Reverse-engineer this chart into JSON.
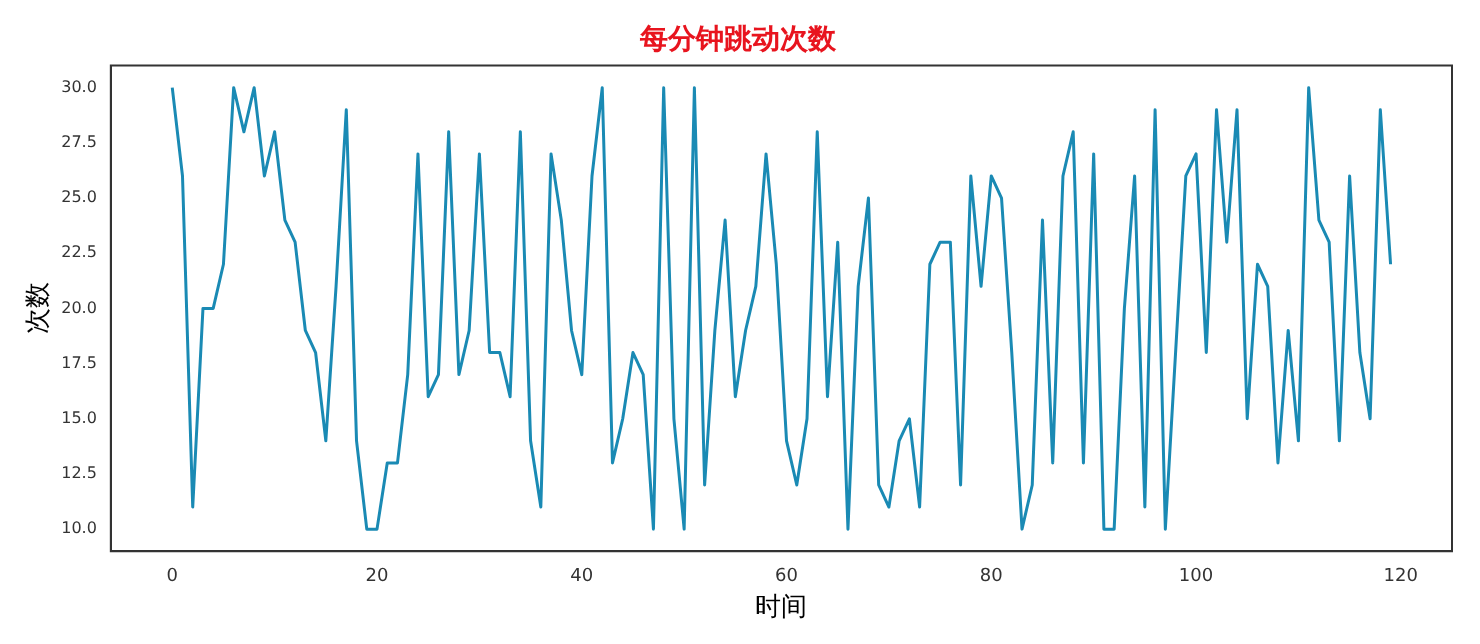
{
  "chart_data": {
    "type": "line",
    "title": "每分钟跳动次数",
    "xlabel": "时间",
    "ylabel": "次数",
    "x": [
      0,
      1,
      2,
      3,
      4,
      5,
      6,
      7,
      8,
      9,
      10,
      11,
      12,
      13,
      14,
      15,
      16,
      17,
      18,
      19,
      20,
      21,
      22,
      23,
      24,
      25,
      26,
      27,
      28,
      29,
      30,
      31,
      32,
      33,
      34,
      35,
      36,
      37,
      38,
      39,
      40,
      41,
      42,
      43,
      44,
      45,
      46,
      47,
      48,
      49,
      50,
      51,
      52,
      53,
      54,
      55,
      56,
      57,
      58,
      59,
      60,
      61,
      62,
      63,
      64,
      65,
      66,
      67,
      68,
      69,
      70,
      71,
      72,
      73,
      74,
      75,
      76,
      77,
      78,
      79,
      80,
      81,
      82,
      83,
      84,
      85,
      86,
      87,
      88,
      89,
      90,
      91,
      92,
      93,
      94,
      95,
      96,
      97,
      98,
      99,
      100,
      101,
      102,
      103,
      104,
      105,
      106,
      107,
      108,
      109,
      110,
      111,
      112,
      113,
      114,
      115,
      116,
      117,
      118,
      119
    ],
    "series": [
      {
        "color": "#1a8ab4",
        "values": [
          30,
          26,
          11,
          20,
          20,
          22,
          30,
          28,
          30,
          26,
          28,
          24,
          23,
          19,
          18,
          14,
          21,
          29,
          14,
          10,
          10,
          13,
          13,
          17,
          27,
          16,
          17,
          28,
          17,
          19,
          27,
          18,
          18,
          16,
          28,
          14,
          11,
          27,
          24,
          19,
          17,
          26,
          30,
          13,
          15,
          18,
          17,
          10,
          30,
          15,
          10,
          30,
          12,
          19,
          24,
          16,
          19,
          21,
          27,
          22,
          14,
          12,
          15,
          28,
          16,
          23,
          10,
          21,
          25,
          12,
          11,
          14,
          15,
          11,
          22,
          23,
          23,
          12,
          26,
          21,
          26,
          25,
          18,
          10,
          12,
          24,
          13,
          26,
          28,
          13,
          27,
          10,
          10,
          20,
          26,
          11,
          29,
          10,
          18,
          26,
          27,
          18,
          29,
          23,
          29,
          15,
          22,
          21,
          13,
          19,
          14,
          30,
          24,
          23,
          14,
          26,
          18,
          15,
          29,
          22
        ]
      }
    ],
    "xlim": [
      -6,
      125
    ],
    "xticks": [
      0,
      20,
      40,
      60,
      80,
      100,
      120
    ],
    "ylim": [
      9,
      31
    ],
    "yticks": [
      {
        "value": 10,
        "label": "10.0"
      },
      {
        "value": 12.5,
        "label": "12.5"
      },
      {
        "value": 15,
        "label": "15.0"
      },
      {
        "value": 17.5,
        "label": "17.5"
      },
      {
        "value": 20,
        "label": "20.0"
      },
      {
        "value": 22.5,
        "label": "22.5"
      },
      {
        "value": 25,
        "label": "25.0"
      },
      {
        "value": 27.5,
        "label": "27.5"
      },
      {
        "value": 30,
        "label": "30.0"
      }
    ],
    "grid": false,
    "legend": false,
    "marker": "none",
    "line_style": "solid"
  }
}
